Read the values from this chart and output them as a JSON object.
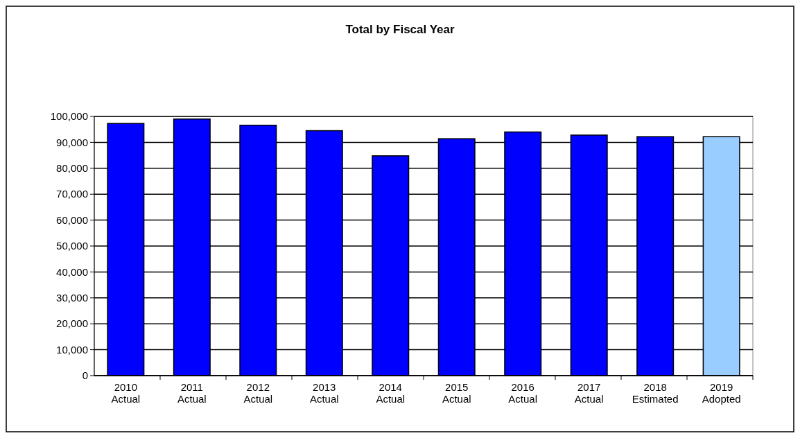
{
  "chart_data": {
    "type": "bar",
    "title": "Total by Fiscal Year",
    "categories": [
      "2010\nActual",
      "2011\nActual",
      "2012\nActual",
      "2013\nActual",
      "2014\nActual",
      "2015\nActual",
      "2016\nActual",
      "2017\nActual",
      "2018\nEstimated",
      "2019\nAdopted"
    ],
    "values": [
      97300,
      99000,
      96600,
      94500,
      84800,
      91400,
      94000,
      92800,
      92200,
      92200
    ],
    "colors": [
      "#0000ff",
      "#0000ff",
      "#0000ff",
      "#0000ff",
      "#0000ff",
      "#0000ff",
      "#0000ff",
      "#0000ff",
      "#0000ff",
      "#99ccff"
    ],
    "ylim": [
      0,
      100000
    ],
    "yticks": [
      {
        "value": 0,
        "label": "0"
      },
      {
        "value": 10000,
        "label": "10,000"
      },
      {
        "value": 20000,
        "label": "20,000"
      },
      {
        "value": 30000,
        "label": "30,000"
      },
      {
        "value": 40000,
        "label": "40,000"
      },
      {
        "value": 50000,
        "label": "50,000"
      },
      {
        "value": 60000,
        "label": "60,000"
      },
      {
        "value": 70000,
        "label": "70,000"
      },
      {
        "value": 80000,
        "label": "80,000"
      },
      {
        "value": 90000,
        "label": "90,000"
      },
      {
        "value": 100000,
        "label": "100,000"
      }
    ],
    "grid": "y"
  }
}
